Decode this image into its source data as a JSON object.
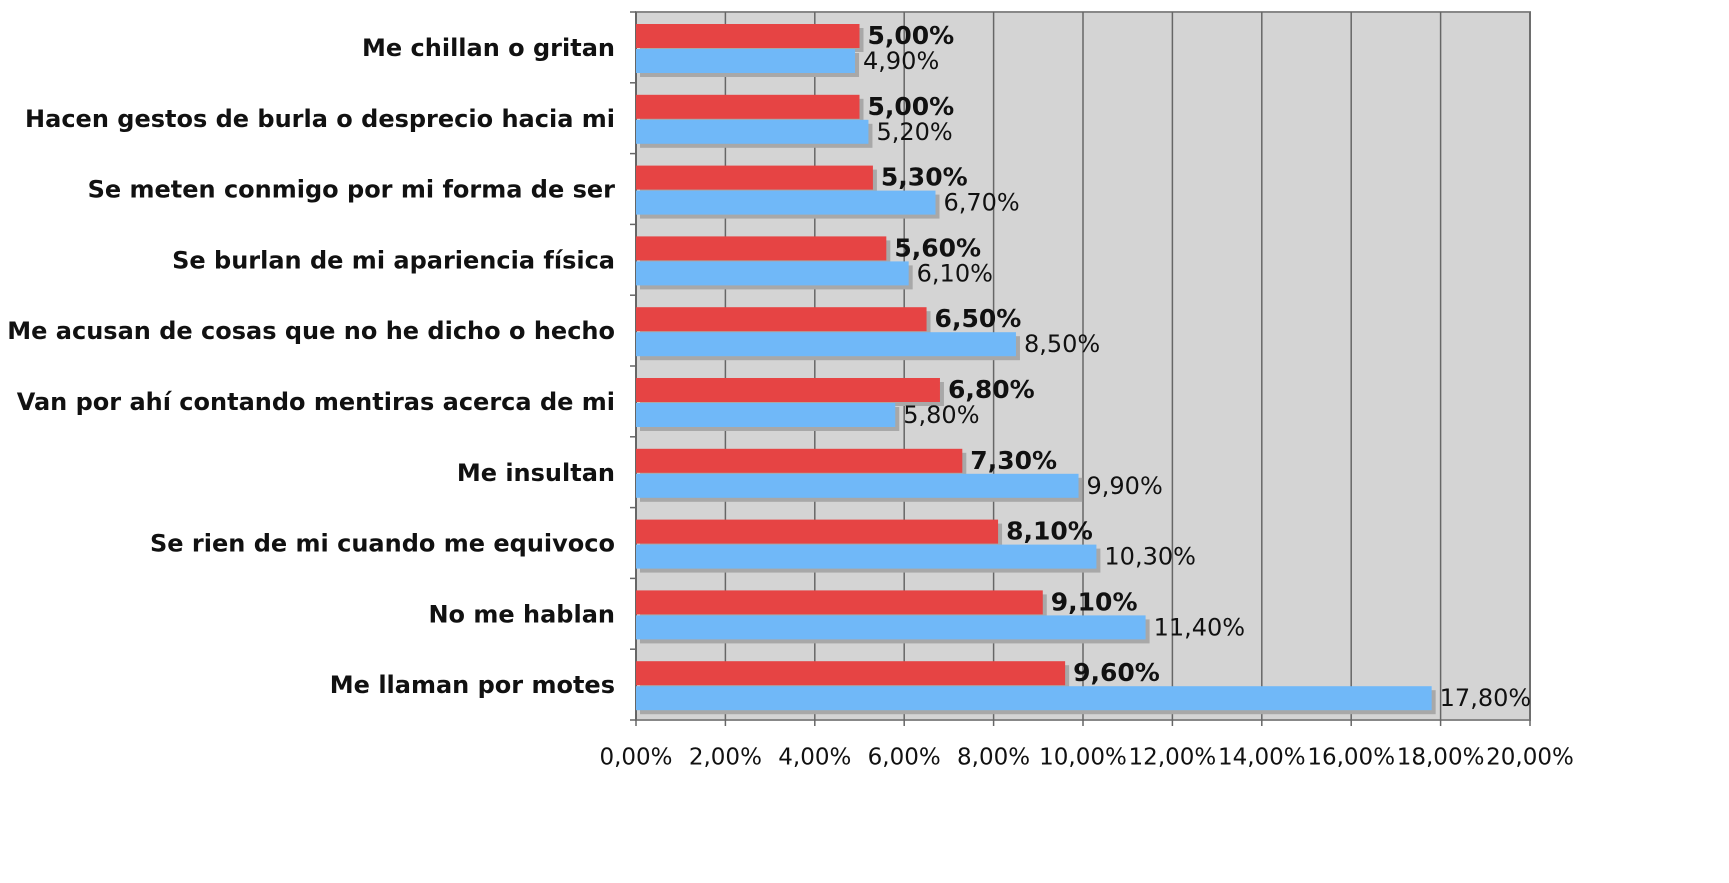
{
  "chart_data": {
    "type": "hbar",
    "categories": [
      "Me chillan o gritan",
      "Hacen gestos de burla o desprecio hacia mi",
      "Se meten conmigo por mi forma de ser",
      "Se burlan de mi apariencia física",
      "Me acusan de cosas que no he dicho o hecho",
      "Van por ahí contando mentiras acerca de mi",
      "Me insultan",
      "Se rien de mi cuando me equivoco",
      "No me hablan",
      "Me llaman por motes"
    ],
    "series": [
      {
        "color": "#e64444",
        "values": [
          5.0,
          5.0,
          5.3,
          5.6,
          6.5,
          6.8,
          7.3,
          8.1,
          9.1,
          9.6
        ],
        "value_labels": [
          "5,00%",
          "5,00%",
          "5,30%",
          "5,60%",
          "6,50%",
          "6,80%",
          "7,30%",
          "8,10%",
          "9,10%",
          "9,60%"
        ]
      },
      {
        "color": "#70b8f8",
        "values": [
          4.9,
          5.2,
          6.7,
          6.1,
          8.5,
          5.8,
          9.9,
          10.3,
          11.4,
          17.8
        ],
        "value_labels": [
          "4,90%",
          "5,20%",
          "6,70%",
          "6,10%",
          "8,50%",
          "5,80%",
          "9,90%",
          "10,30%",
          "11,40%",
          "17,80%"
        ]
      }
    ],
    "xlim": [
      0,
      20
    ],
    "xticks": [
      {
        "value": 0,
        "label": "0,00%"
      },
      {
        "value": 2,
        "label": "2,00%"
      },
      {
        "value": 4,
        "label": "4,00%"
      },
      {
        "value": 6,
        "label": "6,00%"
      },
      {
        "value": 8,
        "label": "8,00%"
      },
      {
        "value": 10,
        "label": "10,00%"
      },
      {
        "value": 12,
        "label": "12,00%"
      },
      {
        "value": 14,
        "label": "14,00%"
      },
      {
        "value": 16,
        "label": "16,00%"
      },
      {
        "value": 18,
        "label": "18,00%"
      },
      {
        "value": 20,
        "label": "20,00%"
      }
    ],
    "grid": true
  }
}
